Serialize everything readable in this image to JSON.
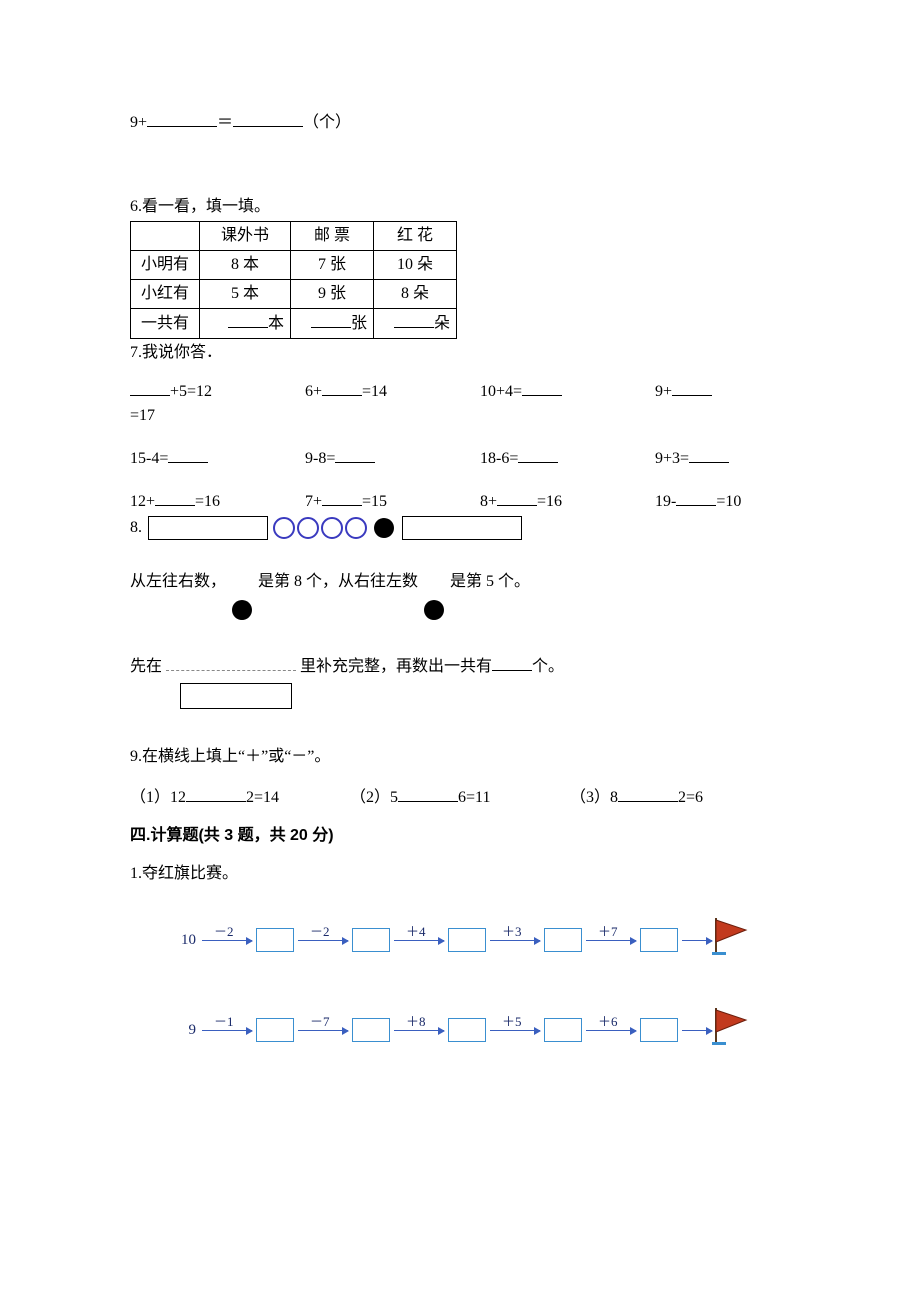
{
  "q_top": {
    "prefix": "9+",
    "equals": "＝",
    "suffix": "（个）"
  },
  "q6": {
    "title": "6.看一看，填一填。",
    "headers": [
      "",
      "课外书",
      "邮 票",
      "红 花"
    ],
    "rows": [
      [
        "小明有",
        "8 本",
        "7 张",
        "10 朵"
      ],
      [
        "小红有",
        "5 本",
        "9 张",
        "8 朵"
      ]
    ],
    "total_row": {
      "label": "一共有",
      "units": [
        "本",
        "张",
        "朵"
      ]
    }
  },
  "q7": {
    "title": "7.我说你答．",
    "row1": [
      "+5=12",
      "6+",
      "=14",
      "10+4=",
      "9+"
    ],
    "row1_tail": "=17",
    "row2": [
      "15-4=",
      "9-8=",
      "18-6=",
      "9+3="
    ],
    "row3": [
      "12+",
      "=16",
      "7+",
      "=15",
      "8+",
      "=16",
      "19-",
      "=10"
    ]
  },
  "q8": {
    "label": "8.",
    "line1_a": "从左往右数，",
    "line1_b": "是第 8 个，从右往左数",
    "line1_c": "是第 5 个。",
    "line2_a": "先在",
    "line2_b": "里补充完整，再数出一共有",
    "line2_c": "个。"
  },
  "q9": {
    "title": "9.在横线上填上“＋”或“－”。",
    "items": [
      {
        "idx": "（1）",
        "a": "12",
        "b": "2=14"
      },
      {
        "idx": "（2）",
        "a": "5",
        "b": "6=11"
      },
      {
        "idx": "（3）",
        "a": "8",
        "b": "2=6"
      }
    ]
  },
  "sec4": {
    "heading": "四.计算题(共 3 题，共 20 分)"
  },
  "q41": {
    "title": "1.夺红旗比赛。",
    "rows": [
      {
        "start": "10",
        "ops": [
          "－2",
          "－2",
          "＋4",
          "＋3",
          "＋7"
        ]
      },
      {
        "start": "9",
        "ops": [
          "－1",
          "－7",
          "＋8",
          "＋5",
          "＋6"
        ]
      }
    ]
  },
  "colors": {
    "arrow": "#3a5fbf",
    "box": "#3a8fd0",
    "flag_fill": "#c23a1e",
    "flag_stroke": "#6b1e0c"
  }
}
